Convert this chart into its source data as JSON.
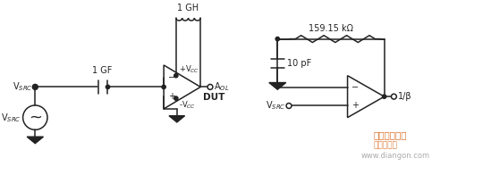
{
  "bg_color": "#ffffff",
  "line_color": "#222222",
  "fig_width": 5.49,
  "fig_height": 1.96,
  "dpi": 100,
  "left_circuit": {
    "label_vsrc": "V$_{SRC}$",
    "label_vsrc2": "V$_{SRC}$",
    "label_1gf": "1 GF",
    "label_1gh": "1 GH",
    "label_vcc_pos": "+V$_{CC}$",
    "label_vcc_neg": "-V$_{CC}$",
    "label_aol": "A$_{OL}$",
    "label_dut": "DUT"
  },
  "right_circuit": {
    "label_r": "159.15 kΩ",
    "label_c": "10 pF",
    "label_vsrc": "V$_{SRC}$",
    "label_out": "1/β"
  },
  "watermark_line1": "理想的放大器",
  "watermark_line2": "电子发烧友",
  "watermark_line3": "www.diangon.com"
}
